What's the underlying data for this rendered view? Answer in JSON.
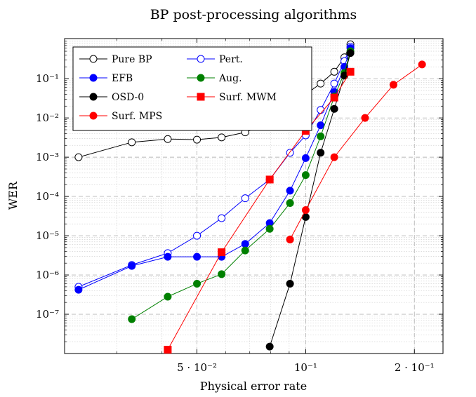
{
  "chart_data": {
    "type": "line",
    "title": "BP post-processing algorithms",
    "xlabel": "Physical error rate",
    "ylabel": "WER",
    "xscale": "log",
    "yscale": "log",
    "xlim": [
      0.0215,
      0.24
    ],
    "ylim": [
      1e-08,
      1.05
    ],
    "x_ticks": [
      {
        "value": 0.05,
        "label": "5 · 10⁻²"
      },
      {
        "value": 0.1,
        "label": "10⁻¹"
      },
      {
        "value": 0.2,
        "label": "2 · 10⁻¹"
      }
    ],
    "y_ticks": [
      {
        "value": 1e-07,
        "label": "10⁻⁷"
      },
      {
        "value": 1e-06,
        "label": "10⁻⁶"
      },
      {
        "value": 1e-05,
        "label": "10⁻⁵"
      },
      {
        "value": 0.0001,
        "label": "10⁻⁴"
      },
      {
        "value": 0.001,
        "label": "10⁻³"
      },
      {
        "value": 0.01,
        "label": "10⁻²"
      },
      {
        "value": 0.1,
        "label": "10⁻¹"
      }
    ],
    "grid": true,
    "legend_position": "top-left",
    "series": [
      {
        "name": "Pure BP",
        "color": "#000000",
        "marker": "circle-open",
        "x": [
          0.0235,
          0.033,
          0.0415,
          0.05,
          0.0585,
          0.068,
          0.0795,
          0.0905,
          0.1,
          0.11,
          0.12,
          0.128,
          0.133
        ],
        "y": [
          0.001,
          0.0024,
          0.0029,
          0.0028,
          0.0032,
          0.0043,
          0.0072,
          0.016,
          0.04,
          0.075,
          0.15,
          0.35,
          0.75
        ]
      },
      {
        "name": "Pert.",
        "color": "#0000ff",
        "marker": "circle-open",
        "x": [
          0.0235,
          0.033,
          0.0415,
          0.05,
          0.0585,
          0.068,
          0.0795,
          0.0905,
          0.1,
          0.11,
          0.12,
          0.128,
          0.133
        ],
        "y": [
          5e-07,
          1.8e-06,
          3.6e-06,
          1e-05,
          2.8e-05,
          9e-05,
          0.00027,
          0.0013,
          0.0036,
          0.016,
          0.075,
          0.28,
          0.65
        ]
      },
      {
        "name": "EFB",
        "color": "#0000ff",
        "marker": "circle-filled",
        "x": [
          0.0235,
          0.033,
          0.0415,
          0.05,
          0.0585,
          0.068,
          0.0795,
          0.0905,
          0.1,
          0.11,
          0.12,
          0.128,
          0.133
        ],
        "y": [
          4.2e-07,
          1.7e-06,
          2.9e-06,
          2.9e-06,
          2.9e-06,
          6.2e-06,
          2.1e-05,
          0.00014,
          0.00095,
          0.0065,
          0.046,
          0.2,
          0.6
        ]
      },
      {
        "name": "Aug.",
        "color": "#008000",
        "marker": "circle-filled",
        "x": [
          0.033,
          0.0415,
          0.05,
          0.0585,
          0.068,
          0.0795,
          0.0905,
          0.1,
          0.11,
          0.12,
          0.128,
          0.133
        ],
        "y": [
          7.5e-08,
          2.8e-07,
          6e-07,
          1.05e-06,
          4.2e-06,
          1.5e-05,
          6.8e-05,
          0.00035,
          0.0034,
          0.035,
          0.14,
          0.5
        ]
      },
      {
        "name": "OSD-0",
        "color": "#000000",
        "marker": "circle-filled",
        "x": [
          0.0795,
          0.0905,
          0.1,
          0.11,
          0.12,
          0.128,
          0.133
        ],
        "y": [
          1.5e-08,
          6e-07,
          3e-05,
          0.0013,
          0.017,
          0.12,
          0.45
        ]
      },
      {
        "name": "Surf. MWM",
        "color": "#ff0000",
        "marker": "square-filled",
        "x": [
          0.0415,
          0.0585,
          0.0795,
          0.1,
          0.12,
          0.133
        ],
        "y": [
          1.25e-08,
          3.8e-06,
          0.00027,
          0.0047,
          0.033,
          0.15
        ]
      },
      {
        "name": "Surf. MPS",
        "color": "#ff0000",
        "marker": "circle-filled",
        "x": [
          0.0905,
          0.1,
          0.12,
          0.146,
          0.175,
          0.21
        ],
        "y": [
          8e-06,
          4.5e-05,
          0.001,
          0.01,
          0.07,
          0.23
        ]
      }
    ]
  }
}
